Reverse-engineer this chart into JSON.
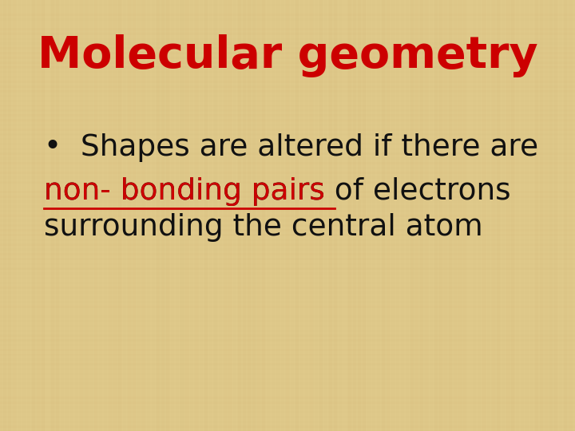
{
  "title": "Molecular geometry",
  "title_color": "#cc0000",
  "title_fontsize": 40,
  "background_color": "#dfc98a",
  "bullet_line1": "•  Shapes are altered if there are",
  "underlined_text": "non- bonding pairs ",
  "continuation_text": "of electrons",
  "line3": "surrounding the central atom",
  "body_color": "#111111",
  "underline_color": "#cc0000",
  "body_fontsize": 27,
  "font_family": "Comic Sans MS"
}
